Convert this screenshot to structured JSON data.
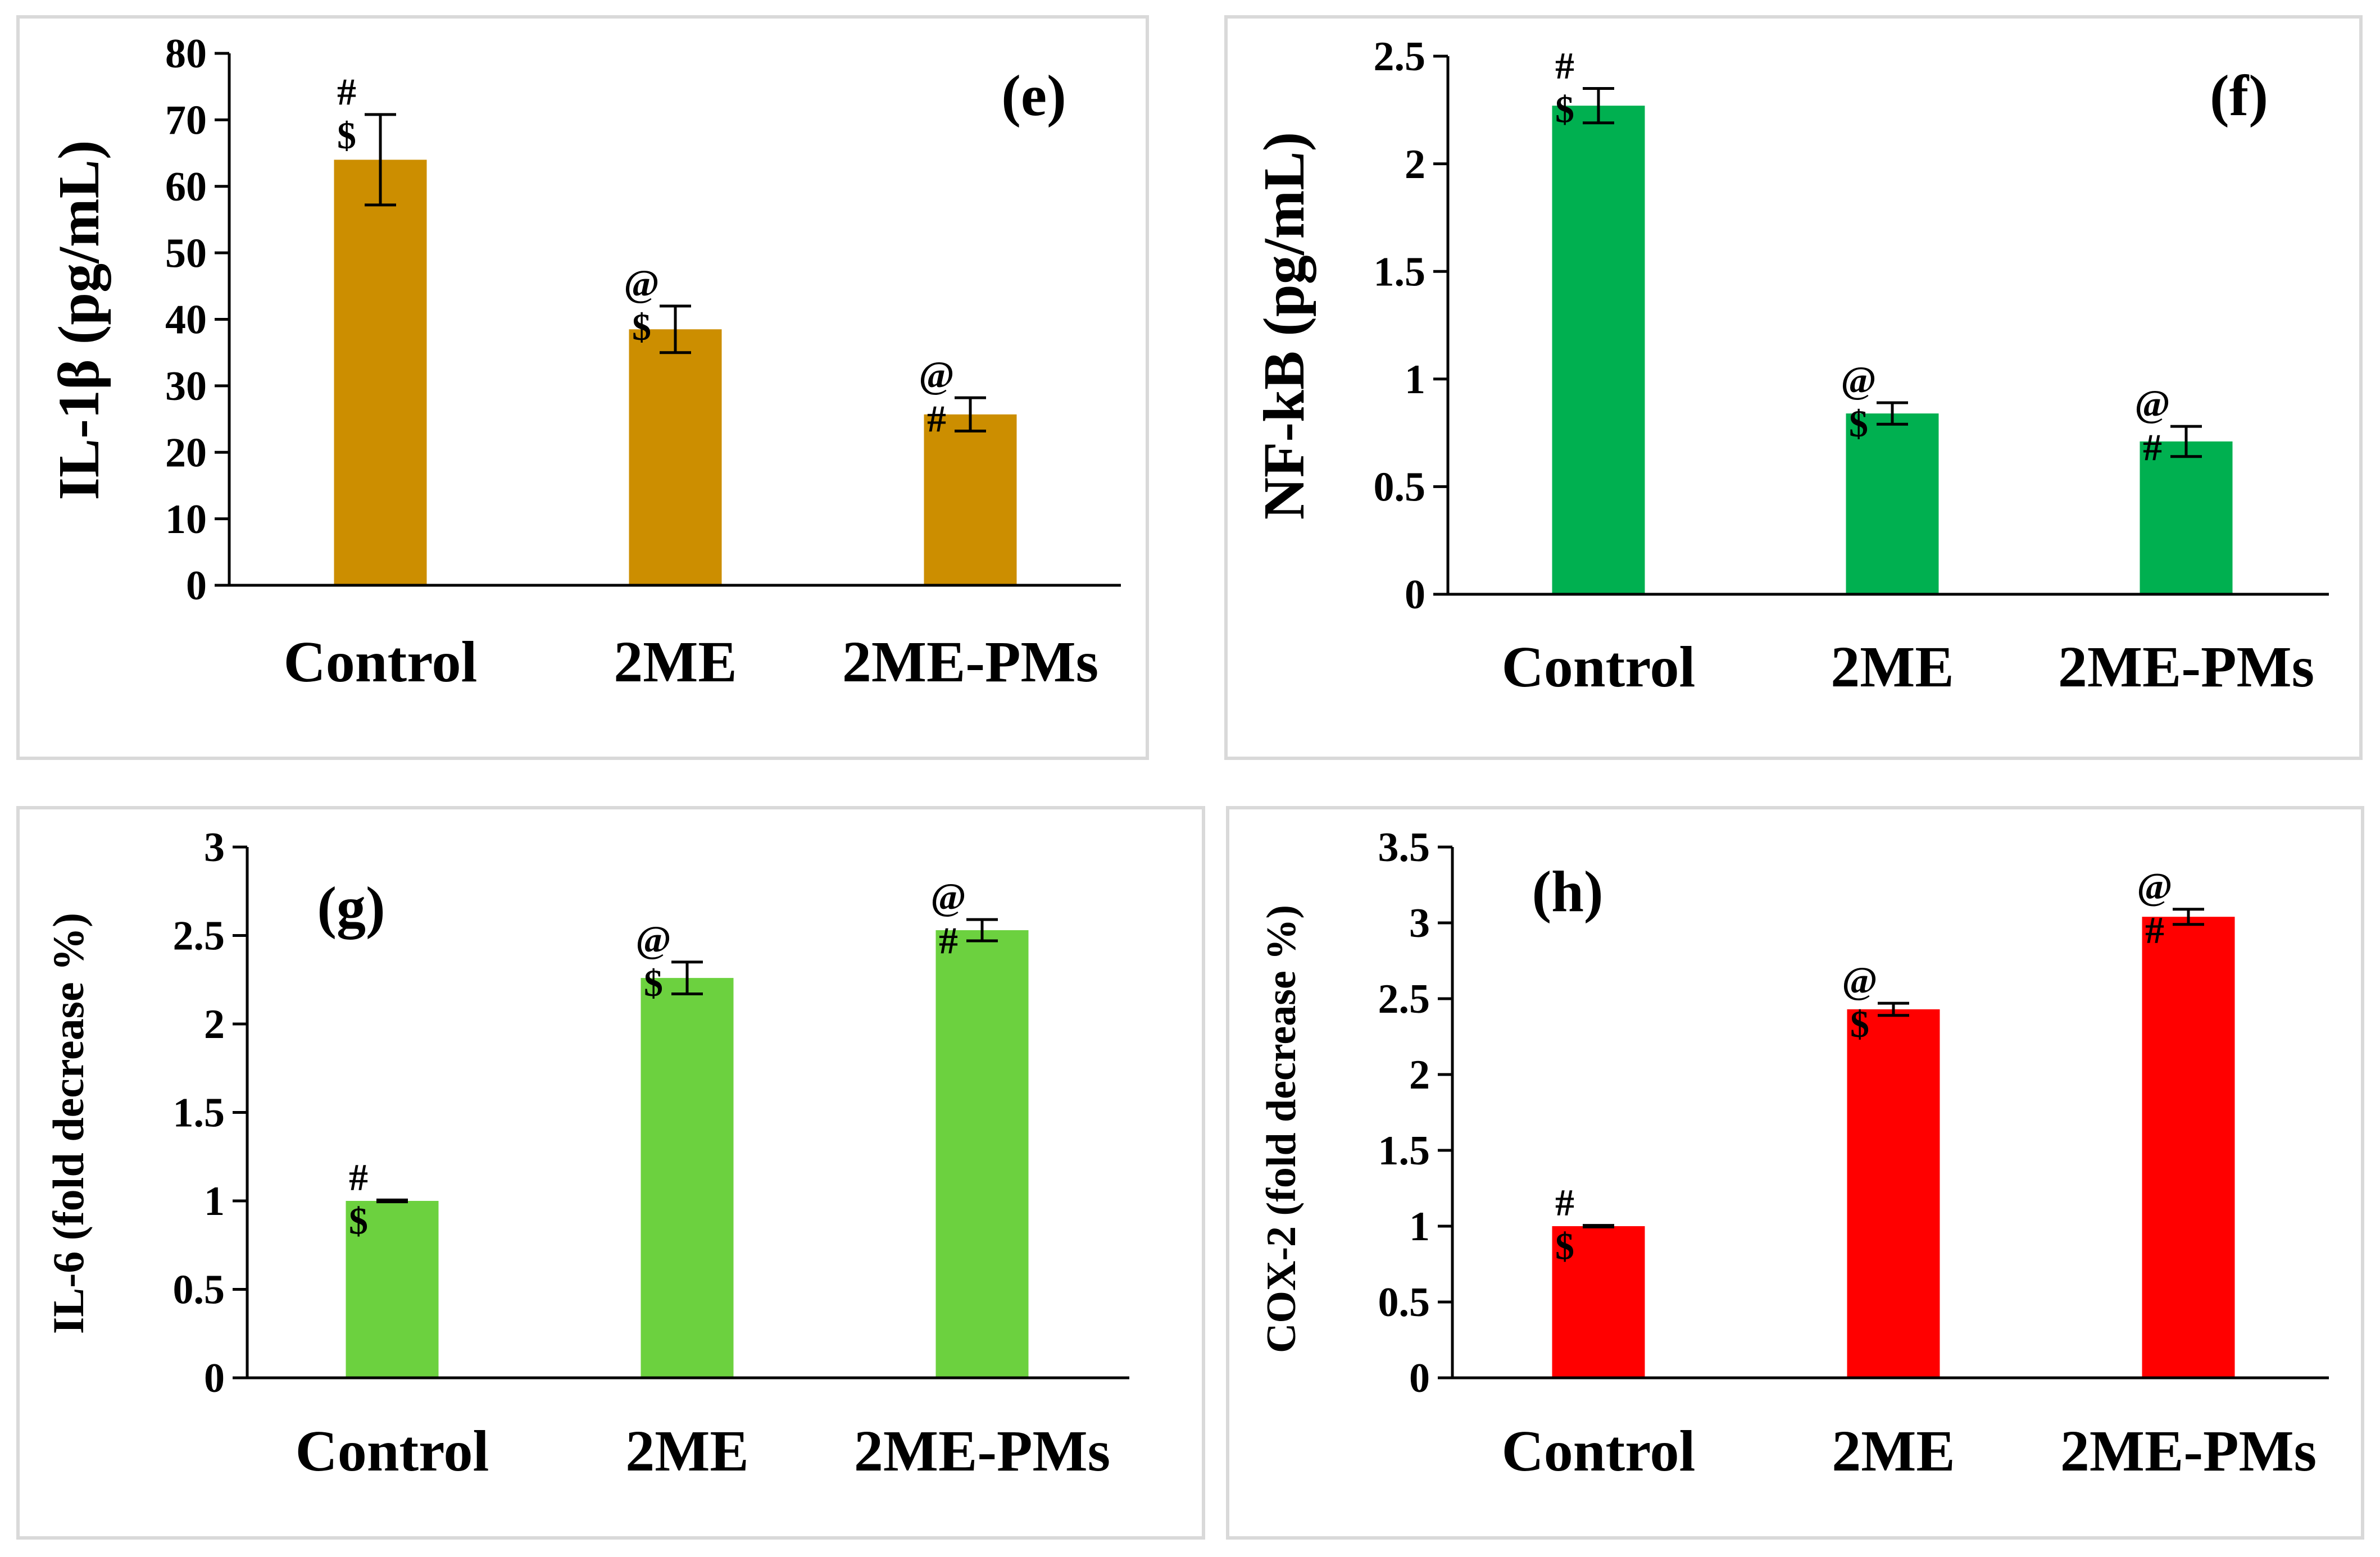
{
  "chart_data": [
    {
      "id": "e",
      "type": "bar",
      "panel_label": "(e)",
      "ylabel": "IL-1β (pg/mL)",
      "ylim": [
        0,
        80
      ],
      "yticks": [
        "0",
        "10",
        "20",
        "30",
        "40",
        "50",
        "60",
        "70",
        "80"
      ],
      "ytick_values": [
        0,
        10,
        20,
        30,
        40,
        50,
        60,
        70,
        80
      ],
      "categories": [
        "Control",
        "2ME",
        "2ME-PMs"
      ],
      "values": [
        64,
        38.5,
        25.7
      ],
      "errors": [
        6.8,
        3.5,
        2.5
      ],
      "annotations": [
        [
          "#",
          "$"
        ],
        [
          "@",
          "$"
        ],
        [
          "@",
          "#"
        ]
      ],
      "bar_color": "#CC8E00"
    },
    {
      "id": "f",
      "type": "bar",
      "panel_label": "(f)",
      "ylabel": "NF-kB (pg/mL)",
      "ylim": [
        0,
        2.5
      ],
      "yticks": [
        "0",
        "0.5",
        "1",
        "1.5",
        "2",
        "2.5"
      ],
      "ytick_values": [
        0,
        0.5,
        1,
        1.5,
        2,
        2.5
      ],
      "categories": [
        "Control",
        "2ME",
        "2ME-PMs"
      ],
      "values": [
        2.27,
        0.84,
        0.71
      ],
      "errors": [
        0.08,
        0.05,
        0.07
      ],
      "annotations": [
        [
          "#",
          "$"
        ],
        [
          "@",
          "$"
        ],
        [
          "@",
          "#"
        ]
      ],
      "bar_color": "#00B050"
    },
    {
      "id": "g",
      "type": "bar",
      "panel_label": "(g)",
      "ylabel": "IL-6 (fold decrease %)",
      "ylim": [
        0,
        3
      ],
      "yticks": [
        "0",
        "0.5",
        "1",
        "1.5",
        "2",
        "2.5",
        "3"
      ],
      "ytick_values": [
        0,
        0.5,
        1,
        1.5,
        2,
        2.5,
        3
      ],
      "categories": [
        "Control",
        "2ME",
        "2ME-PMs"
      ],
      "values": [
        1.0,
        2.26,
        2.53
      ],
      "errors": [
        0.005,
        0.09,
        0.06
      ],
      "annotations": [
        [
          "#",
          "$"
        ],
        [
          "@",
          "$"
        ],
        [
          "@",
          "#"
        ]
      ],
      "bar_color": "#6CD13F"
    },
    {
      "id": "h",
      "type": "bar",
      "panel_label": "(h)",
      "ylabel": "COX-2 (fold decrease %)",
      "ylim": [
        0,
        3.5
      ],
      "yticks": [
        "0",
        "0.5",
        "1",
        "1.5",
        "2",
        "2.5",
        "3",
        "3.5"
      ],
      "ytick_values": [
        0,
        0.5,
        1,
        1.5,
        2,
        2.5,
        3,
        3.5
      ],
      "categories": [
        "Control",
        "2ME",
        "2ME-PMs"
      ],
      "values": [
        1.0,
        2.43,
        3.04
      ],
      "errors": [
        0.005,
        0.04,
        0.05
      ],
      "annotations": [
        [
          "#",
          "$"
        ],
        [
          "@",
          "$"
        ],
        [
          "@",
          "#"
        ]
      ],
      "bar_color": "#FF0000"
    }
  ]
}
